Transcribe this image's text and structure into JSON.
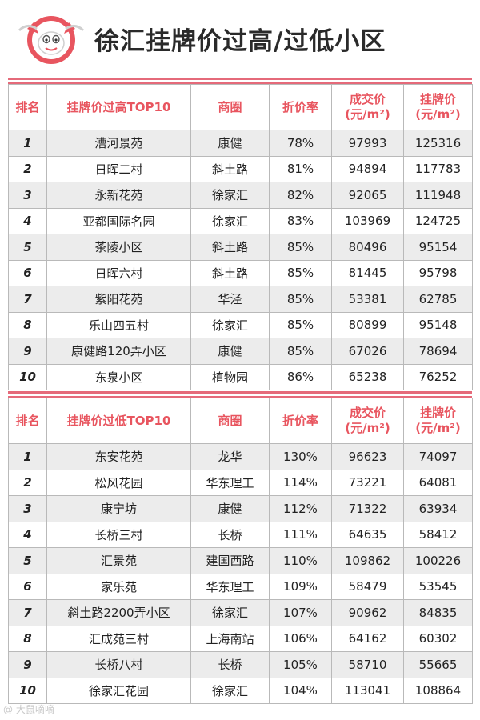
{
  "title": "徐汇挂牌价过高/过低小区",
  "watermark": "@ 大鼠嘀嘀",
  "headers_high": [
    "排名",
    "挂牌价过高TOP10",
    "商圈",
    "折价率",
    "成交价\n(元/m²)",
    "挂牌价\n(元/m²)"
  ],
  "headers_low": [
    "排名",
    "挂牌价过低TOP10",
    "商圈",
    "折价率",
    "成交价\n(元/m²)",
    "挂牌价\n(元/m²)"
  ],
  "high": [
    [
      "1",
      "漕河景苑",
      "康健",
      "78%",
      "97993",
      "125316"
    ],
    [
      "2",
      "日晖二村",
      "斜土路",
      "81%",
      "94894",
      "117783"
    ],
    [
      "3",
      "永新花苑",
      "徐家汇",
      "82%",
      "92065",
      "111948"
    ],
    [
      "4",
      "亚都国际名园",
      "徐家汇",
      "83%",
      "103969",
      "124725"
    ],
    [
      "5",
      "茶陵小区",
      "斜土路",
      "85%",
      "80496",
      "95154"
    ],
    [
      "6",
      "日晖六村",
      "斜土路",
      "85%",
      "81445",
      "95798"
    ],
    [
      "7",
      "紫阳花苑",
      "华泾",
      "85%",
      "53381",
      "62785"
    ],
    [
      "8",
      "乐山四五村",
      "徐家汇",
      "85%",
      "80899",
      "95148"
    ],
    [
      "9",
      "康健路120弄小区",
      "康健",
      "85%",
      "67026",
      "78694"
    ],
    [
      "10",
      "东泉小区",
      "植物园",
      "86%",
      "65238",
      "76252"
    ]
  ],
  "low": [
    [
      "1",
      "东安花苑",
      "龙华",
      "130%",
      "96623",
      "74097"
    ],
    [
      "2",
      "松风花园",
      "华东理工",
      "114%",
      "73221",
      "64081"
    ],
    [
      "3",
      "康宁坊",
      "康健",
      "112%",
      "71322",
      "63934"
    ],
    [
      "4",
      "长桥三村",
      "长桥",
      "111%",
      "64635",
      "58412"
    ],
    [
      "5",
      "汇景苑",
      "建国西路",
      "110%",
      "109862",
      "100226"
    ],
    [
      "6",
      "家乐苑",
      "华东理工",
      "109%",
      "58479",
      "53545"
    ],
    [
      "7",
      "斜土路2200弄小区",
      "徐家汇",
      "107%",
      "90962",
      "84835"
    ],
    [
      "8",
      "汇成苑三村",
      "上海南站",
      "106%",
      "64162",
      "60302"
    ],
    [
      "9",
      "长桥八村",
      "长桥",
      "105%",
      "58710",
      "55665"
    ],
    [
      "10",
      "徐家汇花园",
      "徐家汇",
      "104%",
      "113041",
      "108864"
    ]
  ],
  "colors": {
    "accent": "#e8555f",
    "rule": "#e56a7a",
    "stripe": "#ececec"
  },
  "icons": {
    "logo": "mascot-logo-icon"
  }
}
